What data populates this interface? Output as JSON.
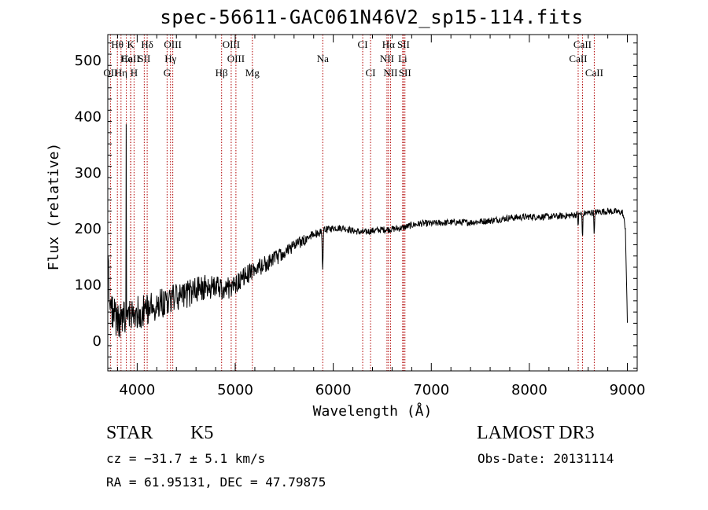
{
  "chart_data": {
    "type": "line",
    "title": "spec-56611-GAC061N46V2_sp15-114.fits",
    "xlabel": "Wavelength (Å)",
    "ylabel": "Flux (relative)",
    "xlim": [
      3700,
      9100
    ],
    "ylim": [
      -55,
      545
    ],
    "x_ticks": [
      4000,
      5000,
      6000,
      7000,
      8000,
      9000
    ],
    "y_ticks": [
      0,
      100,
      200,
      300,
      400,
      500
    ],
    "continuum_anchors": [
      [
        3700,
        160
      ],
      [
        3720,
        60
      ],
      [
        3800,
        30
      ],
      [
        3900,
        40
      ],
      [
        4000,
        50
      ],
      [
        4100,
        55
      ],
      [
        4200,
        65
      ],
      [
        4300,
        70
      ],
      [
        4400,
        75
      ],
      [
        4500,
        80
      ],
      [
        4600,
        90
      ],
      [
        4700,
        95
      ],
      [
        4800,
        95
      ],
      [
        4900,
        90
      ],
      [
        5000,
        100
      ],
      [
        5100,
        115
      ],
      [
        5200,
        125
      ],
      [
        5300,
        135
      ],
      [
        5400,
        145
      ],
      [
        5500,
        155
      ],
      [
        5600,
        168
      ],
      [
        5700,
        178
      ],
      [
        5800,
        188
      ],
      [
        5900,
        195
      ],
      [
        6000,
        200
      ],
      [
        6100,
        200
      ],
      [
        6200,
        195
      ],
      [
        6300,
        192
      ],
      [
        6400,
        195
      ],
      [
        6500,
        197
      ],
      [
        6600,
        198
      ],
      [
        6700,
        200
      ],
      [
        6800,
        205
      ],
      [
        6900,
        208
      ],
      [
        7000,
        208
      ],
      [
        7200,
        210
      ],
      [
        7400,
        210
      ],
      [
        7600,
        213
      ],
      [
        7800,
        218
      ],
      [
        8000,
        220
      ],
      [
        8200,
        220
      ],
      [
        8400,
        222
      ],
      [
        8600,
        227
      ],
      [
        8800,
        230
      ],
      [
        8950,
        228
      ],
      [
        8980,
        200
      ],
      [
        9000,
        30
      ]
    ],
    "absorption_features": [
      {
        "wavelength": 5892,
        "depth": 75,
        "width": 6
      },
      {
        "wavelength": 8542,
        "depth": 40,
        "width": 5
      },
      {
        "wavelength": 8662,
        "depth": 38,
        "width": 5
      },
      {
        "wavelength": 8498,
        "depth": 20,
        "width": 4
      }
    ],
    "emission_spike": {
      "wavelength": 3888,
      "flux": 385
    },
    "noise": {
      "blue_amplitude": 35,
      "red_amplitude": 6,
      "seed": 56611
    },
    "line_markers": [
      {
        "label": "Hθ",
        "wavelength": 3798,
        "row": 1
      },
      {
        "label": "K",
        "wavelength": 3934,
        "row": 1
      },
      {
        "label": "Hδ",
        "wavelength": 4102,
        "row": 1
      },
      {
        "label": "OIII",
        "wavelength": 4363,
        "row": 1
      },
      {
        "label": "OIII",
        "wavelength": 4959,
        "row": 1
      },
      {
        "label": "CI",
        "wavelength": 6300,
        "row": 1
      },
      {
        "label": "Hα",
        "wavelength": 6563,
        "row": 1
      },
      {
        "label": "SII",
        "wavelength": 6716,
        "row": 1
      },
      {
        "label": "CaII",
        "wavelength": 8542,
        "row": 1
      },
      {
        "label": "CaII",
        "wavelength": 3934,
        "row": 2
      },
      {
        "label": "He",
        "wavelength": 3889,
        "row": 2
      },
      {
        "label": "SII",
        "wavelength": 4072,
        "row": 2
      },
      {
        "label": "Hγ",
        "wavelength": 4340,
        "row": 2
      },
      {
        "label": "OIII",
        "wavelength": 5007,
        "row": 2
      },
      {
        "label": "Na",
        "wavelength": 5893,
        "row": 2
      },
      {
        "label": "NII",
        "wavelength": 6548,
        "row": 2
      },
      {
        "label": "Li",
        "wavelength": 6708,
        "row": 2
      },
      {
        "label": "CaII",
        "wavelength": 8498,
        "row": 2
      },
      {
        "label": "OII",
        "wavelength": 3727,
        "row": 3
      },
      {
        "label": "Hη",
        "wavelength": 3835,
        "row": 3
      },
      {
        "label": "H",
        "wavelength": 3968,
        "row": 3
      },
      {
        "label": "G",
        "wavelength": 4305,
        "row": 3
      },
      {
        "label": "Hβ",
        "wavelength": 4861,
        "row": 3
      },
      {
        "label": "Mg",
        "wavelength": 5175,
        "row": 3
      },
      {
        "label": "CI",
        "wavelength": 6380,
        "row": 3
      },
      {
        "label": "NII",
        "wavelength": 6584,
        "row": 3
      },
      {
        "label": "SII",
        "wavelength": 6731,
        "row": 3
      },
      {
        "label": "CaII",
        "wavelength": 8662,
        "row": 3
      }
    ],
    "marker_color": "#b00000"
  },
  "info": {
    "object_class": "STAR",
    "subclass": "K5",
    "survey": "LAMOST DR3",
    "cz": "cz = −31.7 ± 5.1 km/s",
    "obs_date": "Obs-Date: 20131114",
    "coords": "RA =  61.95131, DEC =  47.79875"
  }
}
